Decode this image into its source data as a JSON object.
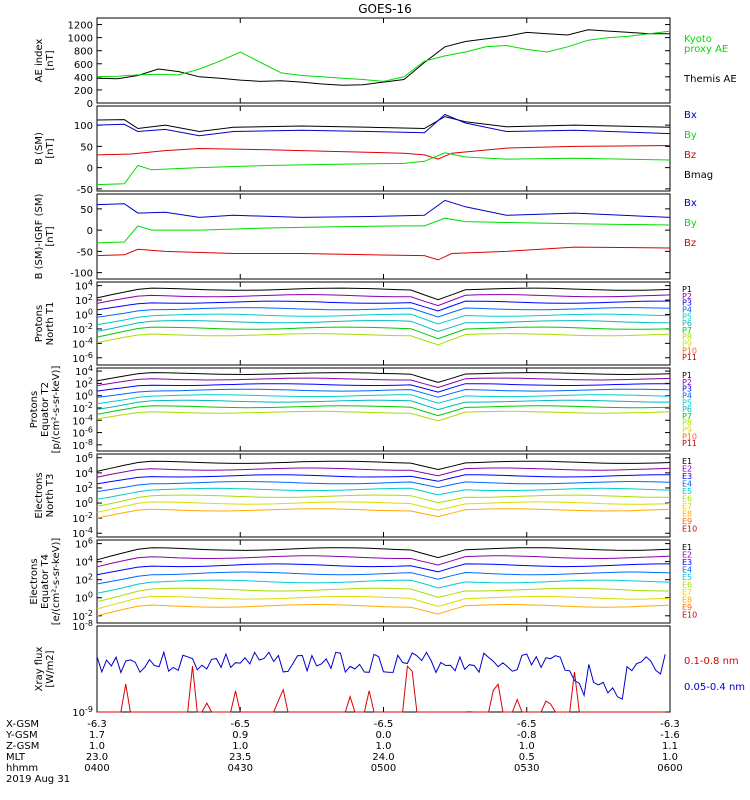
{
  "title": "GOES-16",
  "colors": {
    "black": "#000000",
    "blue": "#0000cc",
    "green": "#00dd00",
    "red": "#dd0000",
    "purple": "#8800aa",
    "navy": "#0000ff",
    "royal": "#0066ff",
    "cyan": "#00cccc",
    "teal": "#00bbbb",
    "lime": "#00cc00",
    "chartreuse": "#aadd00",
    "yellow": "#dddd00",
    "orange": "#ffaa00",
    "darkorange": "#ff6600",
    "crimson": "#cc0000"
  },
  "chart_data": [
    {
      "type": "line",
      "id": "ae",
      "ylabel": [
        "AE index",
        "[nT]"
      ],
      "yticks": [
        "0",
        "200",
        "400",
        "600",
        "800",
        "1000",
        "1200"
      ],
      "ylim": [
        0,
        1300
      ],
      "log": false,
      "legend": [
        {
          "text": "Kyoto",
          "color": "green"
        },
        {
          "text": "proxy AE",
          "color": "green"
        },
        {
          "text": "Themis AE",
          "color": "black"
        }
      ],
      "series": [
        {
          "color": "black",
          "points": [
            [
              0,
              380
            ],
            [
              6,
              370
            ],
            [
              12,
              420
            ],
            [
              18,
              520
            ],
            [
              24,
              480
            ],
            [
              30,
              400
            ],
            [
              36,
              380
            ],
            [
              42,
              350
            ],
            [
              48,
              330
            ],
            [
              54,
              340
            ],
            [
              60,
              320
            ],
            [
              66,
              290
            ],
            [
              72,
              270
            ],
            [
              78,
              280
            ],
            [
              84,
              320
            ],
            [
              90,
              360
            ],
            [
              96,
              620
            ],
            [
              102,
              860
            ],
            [
              108,
              940
            ],
            [
              114,
              980
            ],
            [
              120,
              1020
            ],
            [
              126,
              1080
            ],
            [
              132,
              1060
            ],
            [
              138,
              1040
            ],
            [
              144,
              1120
            ],
            [
              150,
              1100
            ],
            [
              156,
              1080
            ],
            [
              162,
              1060
            ],
            [
              168,
              1060
            ]
          ]
        },
        {
          "color": "green",
          "points": [
            [
              0,
              400
            ],
            [
              6,
              410
            ],
            [
              12,
              430
            ],
            [
              18,
              440
            ],
            [
              24,
              430
            ],
            [
              30,
              520
            ],
            [
              36,
              640
            ],
            [
              42,
              780
            ],
            [
              48,
              620
            ],
            [
              54,
              460
            ],
            [
              60,
              420
            ],
            [
              66,
              400
            ],
            [
              72,
              380
            ],
            [
              78,
              360
            ],
            [
              84,
              330
            ],
            [
              90,
              400
            ],
            [
              96,
              640
            ],
            [
              102,
              720
            ],
            [
              108,
              780
            ],
            [
              114,
              860
            ],
            [
              120,
              880
            ],
            [
              126,
              820
            ],
            [
              132,
              780
            ],
            [
              138,
              860
            ],
            [
              144,
              960
            ],
            [
              150,
              1000
            ],
            [
              156,
              1020
            ],
            [
              162,
              1060
            ],
            [
              168,
              1100
            ]
          ]
        }
      ]
    },
    {
      "type": "line",
      "id": "bsm",
      "ylabel": [
        "B (SM)",
        "[nT]"
      ],
      "yticks": [
        "-50",
        "0",
        "50",
        "100"
      ],
      "ylim": [
        -55,
        145
      ],
      "log": false,
      "legend": [
        {
          "text": "Bx",
          "color": "blue"
        },
        {
          "text": "By",
          "color": "green"
        },
        {
          "text": "Bz",
          "color": "red"
        },
        {
          "text": "Bmag",
          "color": "black"
        }
      ],
      "series": [
        {
          "color": "black",
          "points": [
            [
              0,
              112
            ],
            [
              8,
              113
            ],
            [
              12,
              92
            ],
            [
              20,
              100
            ],
            [
              30,
              85
            ],
            [
              40,
              95
            ],
            [
              60,
              98
            ],
            [
              80,
              95
            ],
            [
              96,
              92
            ],
            [
              102,
              120
            ],
            [
              108,
              108
            ],
            [
              120,
              96
            ],
            [
              140,
              100
            ],
            [
              168,
              95
            ]
          ]
        },
        {
          "color": "blue",
          "points": [
            [
              0,
              100
            ],
            [
              8,
              102
            ],
            [
              12,
              85
            ],
            [
              20,
              90
            ],
            [
              30,
              75
            ],
            [
              40,
              85
            ],
            [
              60,
              88
            ],
            [
              80,
              85
            ],
            [
              96,
              82
            ],
            [
              102,
              125
            ],
            [
              108,
              105
            ],
            [
              120,
              85
            ],
            [
              140,
              88
            ],
            [
              168,
              80
            ]
          ]
        },
        {
          "color": "red",
          "points": [
            [
              0,
              30
            ],
            [
              10,
              32
            ],
            [
              20,
              40
            ],
            [
              30,
              45
            ],
            [
              50,
              42
            ],
            [
              70,
              38
            ],
            [
              90,
              34
            ],
            [
              96,
              30
            ],
            [
              100,
              20
            ],
            [
              104,
              34
            ],
            [
              120,
              46
            ],
            [
              140,
              50
            ],
            [
              168,
              52
            ]
          ]
        },
        {
          "color": "green",
          "points": [
            [
              0,
              -40
            ],
            [
              8,
              -38
            ],
            [
              12,
              5
            ],
            [
              16,
              -5
            ],
            [
              30,
              0
            ],
            [
              50,
              5
            ],
            [
              70,
              8
            ],
            [
              90,
              10
            ],
            [
              96,
              15
            ],
            [
              102,
              35
            ],
            [
              108,
              25
            ],
            [
              120,
              20
            ],
            [
              140,
              22
            ],
            [
              168,
              18
            ]
          ]
        }
      ]
    },
    {
      "type": "line",
      "id": "bigrf",
      "ylabel": [
        "B (SM)-IGRF (SM)",
        "[nT]"
      ],
      "yticks": [
        "-100",
        "-50",
        "0",
        "50"
      ],
      "ylim": [
        -115,
        85
      ],
      "log": false,
      "legend": [
        {
          "text": "Bx",
          "color": "blue"
        },
        {
          "text": "By",
          "color": "green"
        },
        {
          "text": "Bz",
          "color": "red"
        }
      ],
      "series": [
        {
          "color": "blue",
          "points": [
            [
              0,
              60
            ],
            [
              8,
              62
            ],
            [
              12,
              40
            ],
            [
              20,
              42
            ],
            [
              30,
              30
            ],
            [
              40,
              35
            ],
            [
              60,
              30
            ],
            [
              80,
              32
            ],
            [
              96,
              35
            ],
            [
              102,
              70
            ],
            [
              108,
              55
            ],
            [
              120,
              35
            ],
            [
              140,
              40
            ],
            [
              168,
              30
            ]
          ]
        },
        {
          "color": "green",
          "points": [
            [
              0,
              -30
            ],
            [
              8,
              -28
            ],
            [
              12,
              10
            ],
            [
              16,
              0
            ],
            [
              30,
              0
            ],
            [
              50,
              5
            ],
            [
              70,
              8
            ],
            [
              90,
              10
            ],
            [
              96,
              10
            ],
            [
              102,
              28
            ],
            [
              108,
              20
            ],
            [
              120,
              18
            ],
            [
              140,
              15
            ],
            [
              168,
              12
            ]
          ]
        },
        {
          "color": "red",
          "points": [
            [
              0,
              -60
            ],
            [
              8,
              -58
            ],
            [
              12,
              -45
            ],
            [
              20,
              -50
            ],
            [
              40,
              -55
            ],
            [
              60,
              -55
            ],
            [
              80,
              -58
            ],
            [
              96,
              -60
            ],
            [
              100,
              -70
            ],
            [
              104,
              -55
            ],
            [
              120,
              -50
            ],
            [
              140,
              -40
            ],
            [
              168,
              -42
            ]
          ]
        }
      ]
    },
    {
      "type": "line",
      "id": "pn",
      "ylabel": [
        "Protons",
        "North T1"
      ],
      "yticks": [
        "10^4",
        "10^2",
        "10^0",
        "10^-2",
        "10^-4",
        "10^-6"
      ],
      "ylim": [
        -7,
        4.5
      ],
      "log": true,
      "legend": [
        {
          "text": "P1",
          "color": "black"
        },
        {
          "text": "P2",
          "color": "purple"
        },
        {
          "text": "P3",
          "color": "navy"
        },
        {
          "text": "P4",
          "color": "royal"
        },
        {
          "text": "P5",
          "color": "cyan"
        },
        {
          "text": "P6",
          "color": "teal"
        },
        {
          "text": "P7",
          "color": "lime"
        },
        {
          "text": "P8",
          "color": "chartreuse"
        },
        {
          "text": "P9",
          "color": "yellow"
        },
        {
          "text": "P10",
          "color": "darkorange"
        },
        {
          "text": "P11",
          "color": "crimson"
        }
      ],
      "series": []
    },
    {
      "type": "line",
      "id": "pe",
      "ylabel": [
        "Protons",
        "Equator T2",
        "[p/(cm²-s-sr-keV)]"
      ],
      "yticks": [
        "10^4",
        "10^2",
        "10^0",
        "10^-2",
        "10^-4",
        "10^-6",
        "10^-8"
      ],
      "ylim": [
        -9,
        4.5
      ],
      "log": true,
      "legend": [
        {
          "text": "P1",
          "color": "black"
        },
        {
          "text": "P2",
          "color": "purple"
        },
        {
          "text": "P3",
          "color": "navy"
        },
        {
          "text": "P4",
          "color": "royal"
        },
        {
          "text": "P5",
          "color": "cyan"
        },
        {
          "text": "P6",
          "color": "teal"
        },
        {
          "text": "P7",
          "color": "lime"
        },
        {
          "text": "P8",
          "color": "chartreuse"
        },
        {
          "text": "P9",
          "color": "yellow"
        },
        {
          "text": "P10",
          "color": "darkorange"
        },
        {
          "text": "P11",
          "color": "crimson"
        }
      ],
      "series": []
    },
    {
      "type": "line",
      "id": "en",
      "ylabel": [
        "Electrons",
        "North T3"
      ],
      "yticks": [
        "10^6",
        "10^4",
        "10^2",
        "10^0",
        "10^-2",
        "10^-4"
      ],
      "ylim": [
        -4.5,
        6.5
      ],
      "log": true,
      "legend": [
        {
          "text": "E1",
          "color": "black"
        },
        {
          "text": "E2",
          "color": "purple"
        },
        {
          "text": "E3",
          "color": "navy"
        },
        {
          "text": "E4",
          "color": "royal"
        },
        {
          "text": "E5",
          "color": "cyan"
        },
        {
          "text": "E6",
          "color": "chartreuse"
        },
        {
          "text": "E7",
          "color": "yellow"
        },
        {
          "text": "E8",
          "color": "orange"
        },
        {
          "text": "E9",
          "color": "darkorange"
        },
        {
          "text": "E10",
          "color": "crimson"
        }
      ],
      "series": []
    },
    {
      "type": "line",
      "id": "ee",
      "ylabel": [
        "Electrons",
        "Equator T4",
        "[e/(cm²-s-sr-keV)]"
      ],
      "yticks": [
        "10^6",
        "10^4",
        "10^2",
        "10^0",
        "10^-2"
      ],
      "ylim": [
        -2.8,
        6.4
      ],
      "log": true,
      "legend": [
        {
          "text": "E1",
          "color": "black"
        },
        {
          "text": "E2",
          "color": "purple"
        },
        {
          "text": "E3",
          "color": "navy"
        },
        {
          "text": "E4",
          "color": "royal"
        },
        {
          "text": "E5",
          "color": "cyan"
        },
        {
          "text": "E6",
          "color": "chartreuse"
        },
        {
          "text": "E7",
          "color": "yellow"
        },
        {
          "text": "E8",
          "color": "orange"
        },
        {
          "text": "E9",
          "color": "darkorange"
        },
        {
          "text": "E10",
          "color": "crimson"
        }
      ],
      "series": []
    },
    {
      "type": "line",
      "id": "xray",
      "ylabel": [
        "Xray flux",
        "[W/m2]"
      ],
      "yticks": [
        "10^-8",
        "10^-9"
      ],
      "ylim": [
        -9,
        -8
      ],
      "log": true,
      "legend": [
        {
          "text": "0.1-0.8 nm",
          "color": "red"
        },
        {
          "text": "0.05-0.4 nm",
          "color": "blue"
        }
      ],
      "series": []
    }
  ],
  "time_axis": {
    "row_labels": [
      "X-GSM",
      "Y-GSM",
      "Z-GSM",
      "MLT",
      "hhmm",
      "2019 Aug 31"
    ],
    "columns": [
      [
        "-6.3",
        "1.7",
        "1.0",
        "23.0",
        "0400"
      ],
      [
        "-6.5",
        "0.9",
        "1.0",
        "23.5",
        "0430"
      ],
      [
        "-6.5",
        "0.0",
        "1.0",
        "24.0",
        "0500"
      ],
      [
        "-6.5",
        "-0.8",
        "1.0",
        "0.5",
        "0530"
      ],
      [
        "-6.3",
        "-1.6",
        "1.1",
        "1.0",
        "0600"
      ]
    ]
  }
}
